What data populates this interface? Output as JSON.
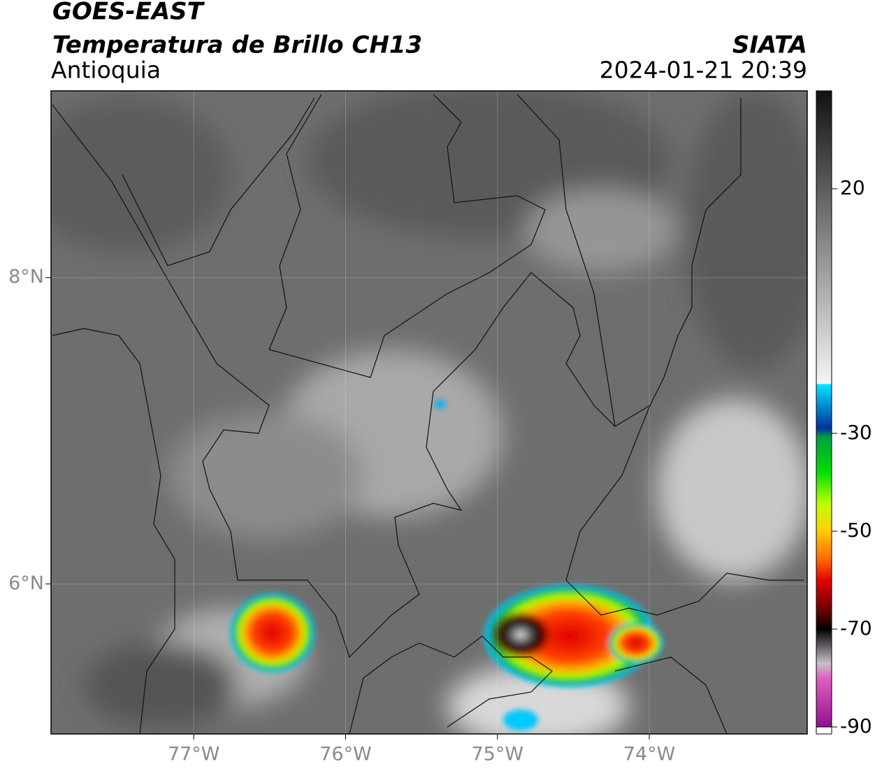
{
  "header": {
    "title": "GOES-EAST",
    "subtitle": "Temperatura de Brillo CH13",
    "region": "Antioquia",
    "source": "SIATA",
    "timestamp": "2024-01-21 20:39"
  },
  "map": {
    "xlim": [
      -77.94,
      -72.96
    ],
    "ylim": [
      5.02,
      9.22
    ],
    "xticks": [
      {
        "value": -77,
        "label": "77°W"
      },
      {
        "value": -76,
        "label": "76°W"
      },
      {
        "value": -75,
        "label": "75°W"
      },
      {
        "value": -74,
        "label": "74°W"
      }
    ],
    "yticks": [
      {
        "value": 8,
        "label": "8°N"
      },
      {
        "value": 6,
        "label": "6°N"
      }
    ]
  },
  "colorbar": {
    "lim": [
      -90,
      40
    ],
    "ticks": [
      20,
      -30,
      -50,
      -70,
      -90
    ]
  }
}
